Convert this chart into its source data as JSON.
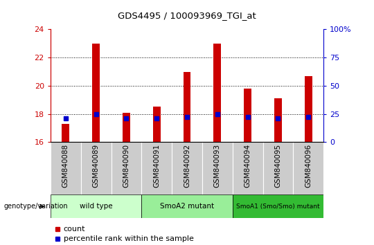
{
  "title": "GDS4495 / 100093969_TGI_at",
  "samples": [
    "GSM840088",
    "GSM840089",
    "GSM840090",
    "GSM840091",
    "GSM840092",
    "GSM840093",
    "GSM840094",
    "GSM840095",
    "GSM840096"
  ],
  "counts": [
    17.3,
    23.0,
    18.1,
    18.5,
    21.0,
    23.0,
    19.8,
    19.1,
    20.7
  ],
  "percentile_vals": [
    17.7,
    18.0,
    17.7,
    17.7,
    17.8,
    18.0,
    17.8,
    17.7,
    17.8
  ],
  "ylim_left": [
    16,
    24
  ],
  "ylim_right": [
    0,
    100
  ],
  "yticks_left": [
    16,
    18,
    20,
    22,
    24
  ],
  "yticks_right": [
    0,
    25,
    50,
    75,
    100
  ],
  "bar_color": "#cc0000",
  "percentile_color": "#0000cc",
  "bar_width": 0.25,
  "bg_color": "#ffffff",
  "groups": [
    {
      "label": "wild type",
      "indices": [
        0,
        1,
        2
      ],
      "color": "#ccffcc"
    },
    {
      "label": "SmoA2 mutant",
      "indices": [
        3,
        4,
        5
      ],
      "color": "#99ee99"
    },
    {
      "label": "SmoA1 (Smo/Smo) mutant",
      "indices": [
        6,
        7,
        8
      ],
      "color": "#33bb33"
    }
  ],
  "tick_bg": "#cccccc",
  "genotype_label": "genotype/variation",
  "legend_count_label": "count",
  "legend_percentile_label": "percentile rank within the sample",
  "left_axis_color": "#cc0000",
  "right_axis_color": "#0000cc",
  "count_base": 16,
  "grid_yticks": [
    18,
    20,
    22
  ]
}
